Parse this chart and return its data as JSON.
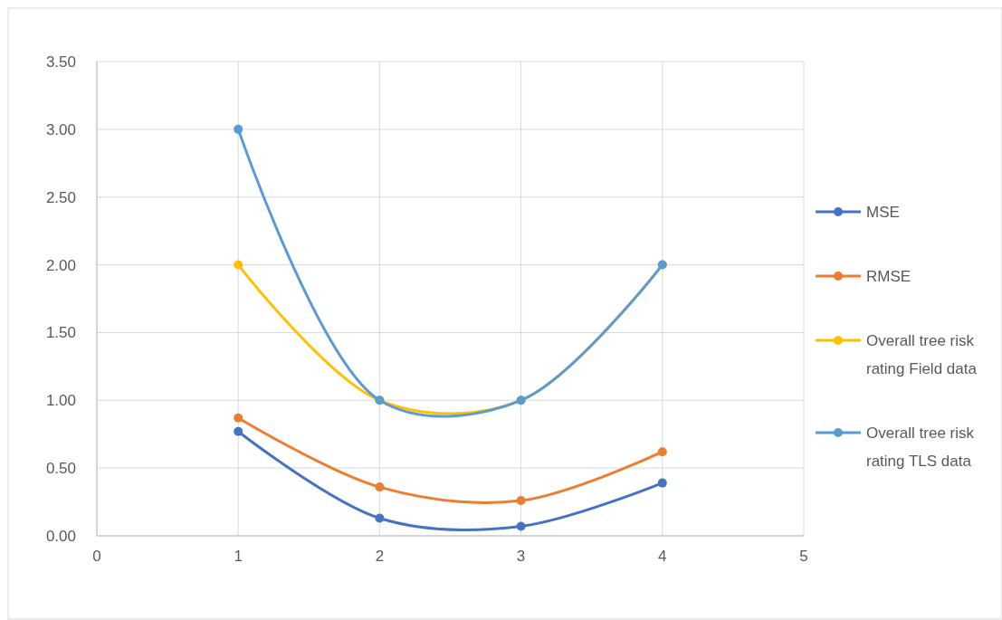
{
  "chart_data": {
    "type": "line",
    "x": [
      1,
      2,
      3,
      4
    ],
    "series": [
      {
        "name": "MSE",
        "color": "#4472c4",
        "values": [
          0.77,
          0.13,
          0.07,
          0.39
        ]
      },
      {
        "name": "RMSE",
        "color": "#ed7d31",
        "values": [
          0.87,
          0.36,
          0.26,
          0.62
        ]
      },
      {
        "name": "Overall tree risk rating Field data",
        "color": "#ffc000",
        "values": [
          2,
          1,
          1,
          2
        ]
      },
      {
        "name": "Overall tree risk rating TLS data",
        "color": "#5b9bd5",
        "values": [
          3,
          1,
          1,
          2
        ]
      }
    ],
    "xlim": [
      0,
      5
    ],
    "xticks": [
      0,
      1,
      2,
      3,
      4,
      5
    ],
    "ylim": [
      0,
      3.5
    ],
    "yticks": [
      {
        "value": 0,
        "label": "0.00"
      },
      {
        "value": 0.5,
        "label": "0.50"
      },
      {
        "value": 1,
        "label": "1.00"
      },
      {
        "value": 1.5,
        "label": "1.50"
      },
      {
        "value": 2,
        "label": "2.00"
      },
      {
        "value": 2.5,
        "label": "2.50"
      },
      {
        "value": 3,
        "label": "3.00"
      },
      {
        "value": 3.5,
        "label": "3.50"
      }
    ],
    "grid": true,
    "legend": "right",
    "marker": "circle",
    "line_style": "solid"
  }
}
